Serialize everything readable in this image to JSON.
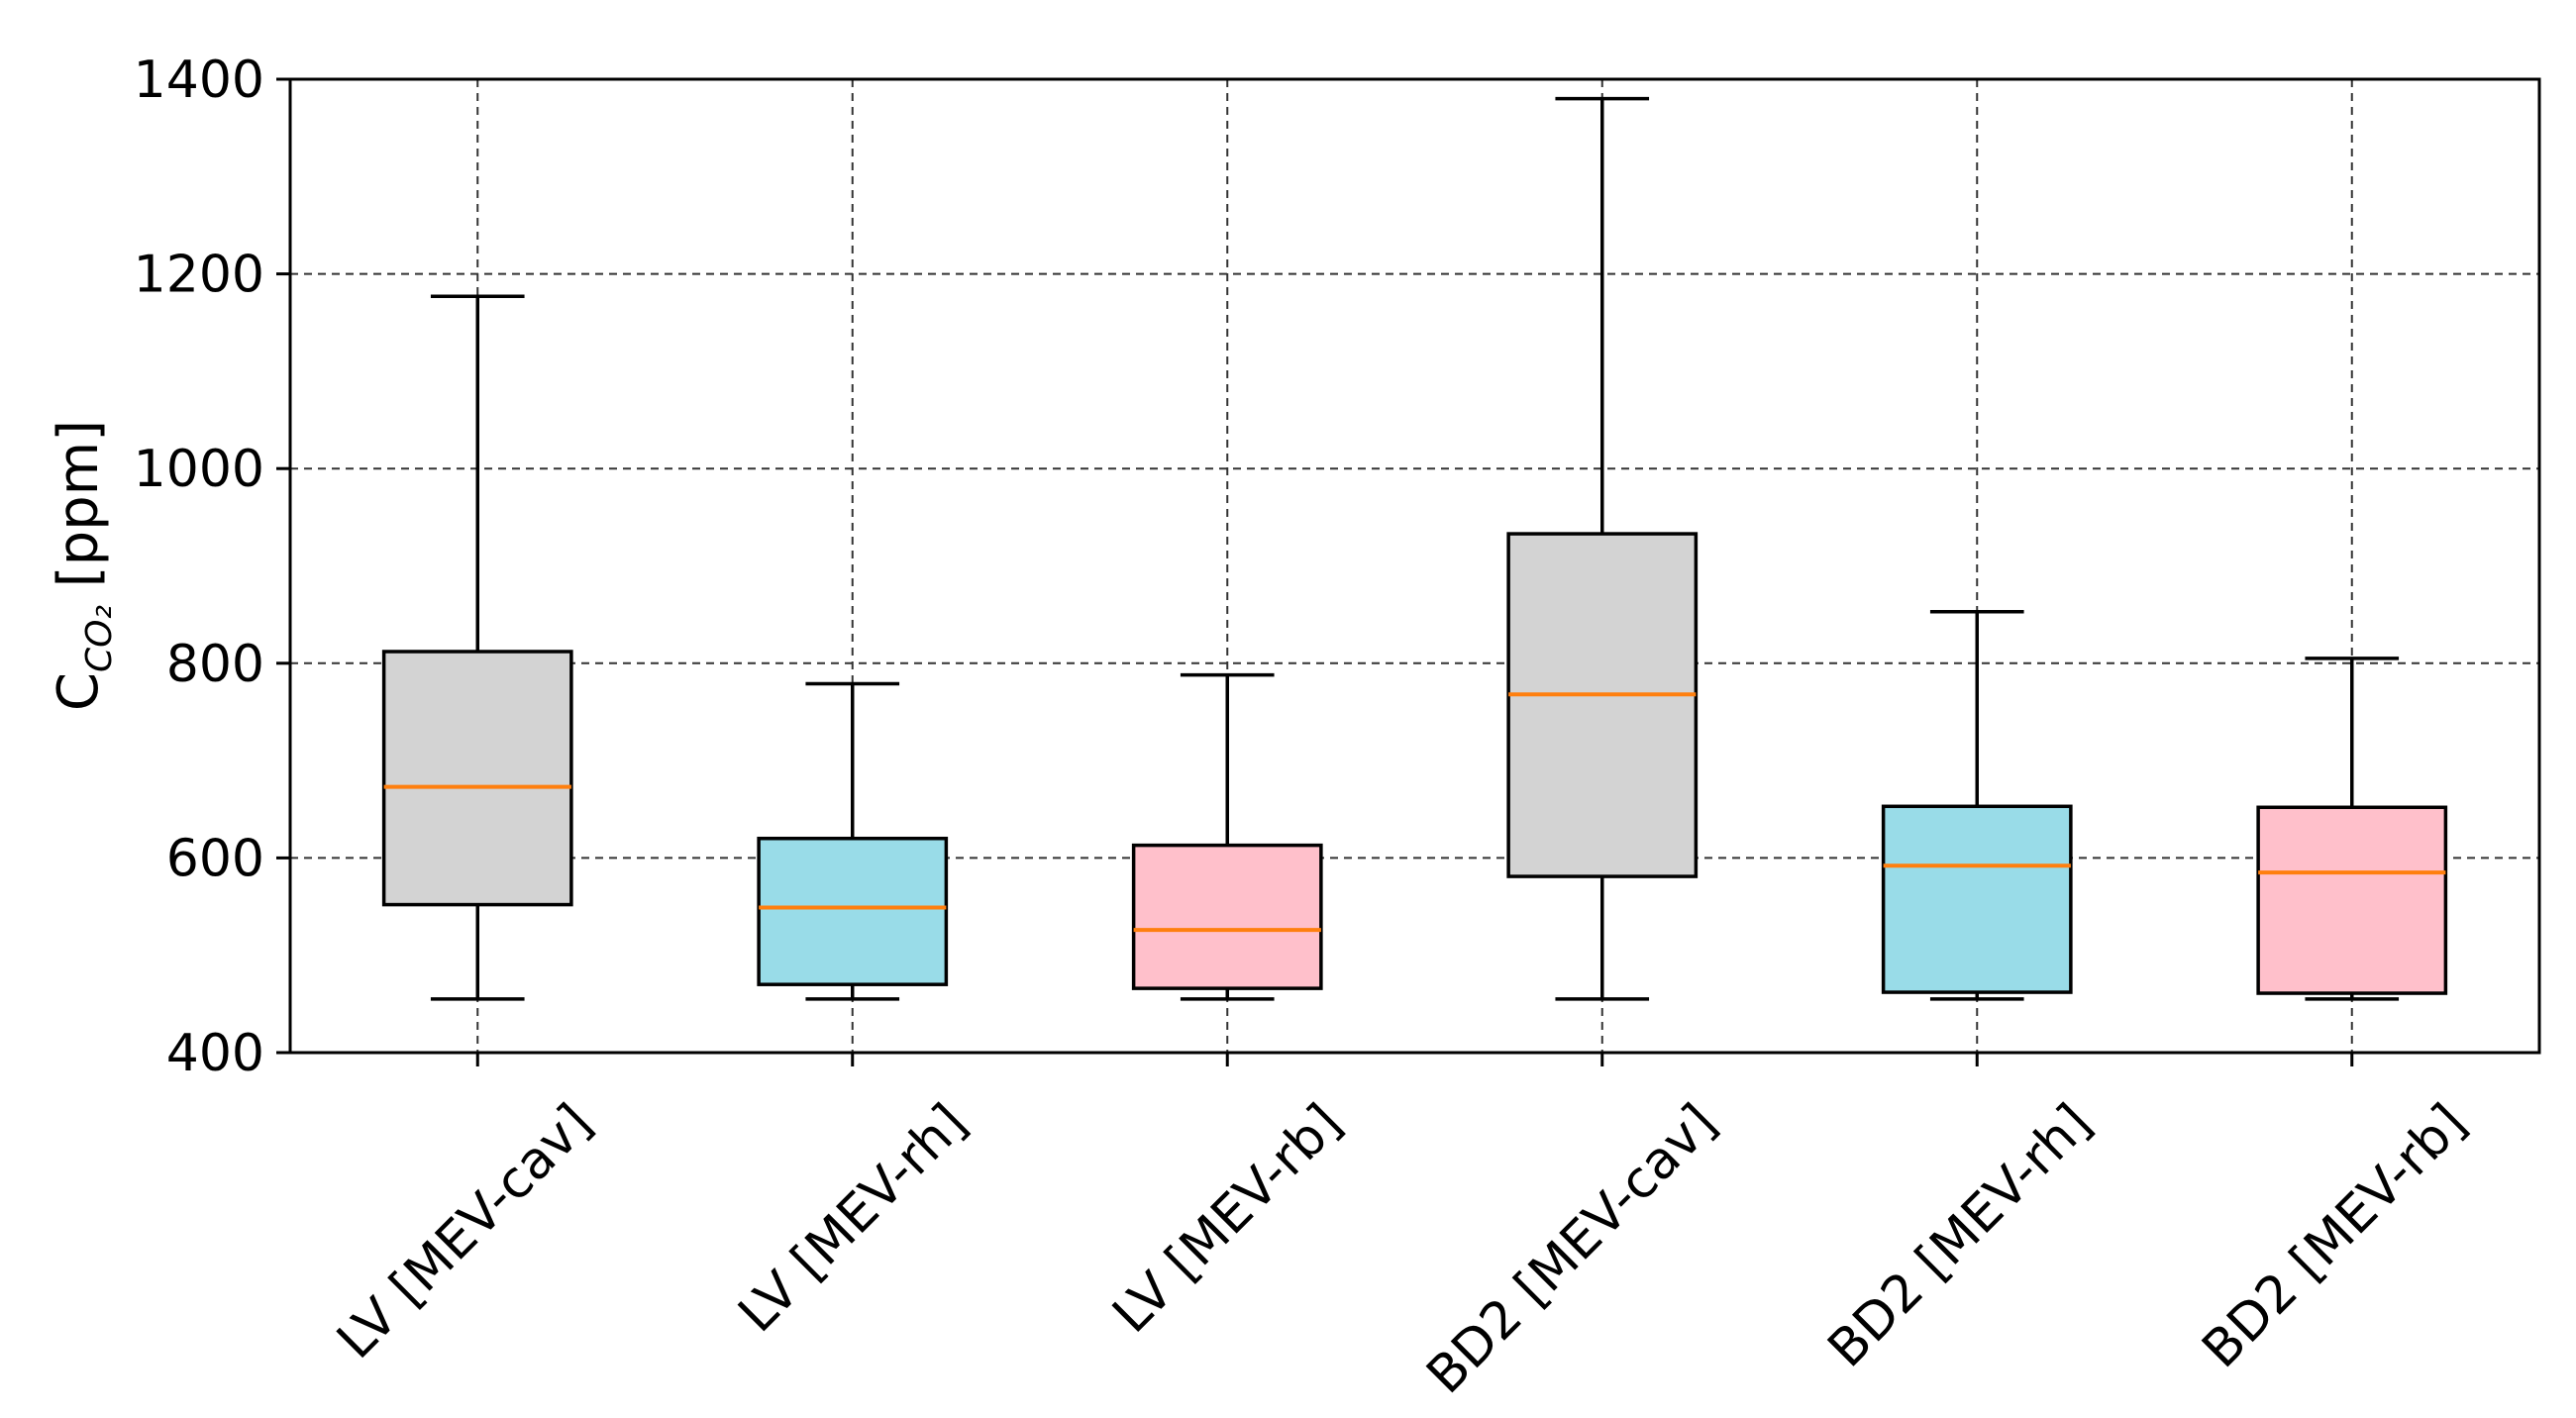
{
  "chart_data": {
    "type": "box",
    "title": "",
    "xlabel": "",
    "ylabel": {
      "main": "C",
      "subscript": "CO₂",
      "unit": " [ppm]"
    },
    "ylim": [
      400,
      1400
    ],
    "yticks": [
      400,
      600,
      800,
      1000,
      1200,
      1400
    ],
    "grid": true,
    "median_color": "#ff7f0e",
    "categories": [
      "LV [MEV-cav]",
      "LV [MEV-rh]",
      "LV [MEV-rb]",
      "BD2 [MEV-cav]",
      "BD2 [MEV-rh]",
      "BD2 [MEV-rb]"
    ],
    "boxes": [
      {
        "label": "LV [MEV-cav]",
        "whislo": 455,
        "q1": 552,
        "median": 673,
        "q3": 812,
        "whishi": 1177,
        "color": "#d3d3d3"
      },
      {
        "label": "LV [MEV-rh]",
        "whislo": 455,
        "q1": 470,
        "median": 549,
        "q3": 620,
        "whishi": 779,
        "color": "#99dce8"
      },
      {
        "label": "LV [MEV-rb]",
        "whislo": 455,
        "q1": 466,
        "median": 526,
        "q3": 613,
        "whishi": 788,
        "color": "#ffc0cb"
      },
      {
        "label": "BD2 [MEV-cav]",
        "whislo": 455,
        "q1": 581,
        "median": 768,
        "q3": 933,
        "whishi": 1380,
        "color": "#d3d3d3"
      },
      {
        "label": "BD2 [MEV-rh]",
        "whislo": 455,
        "q1": 462,
        "median": 592,
        "q3": 653,
        "whishi": 853,
        "color": "#99dce8"
      },
      {
        "label": "BD2 [MEV-rb]",
        "whislo": 455,
        "q1": 461,
        "median": 585,
        "q3": 652,
        "whishi": 805,
        "color": "#ffc0cb"
      }
    ]
  }
}
